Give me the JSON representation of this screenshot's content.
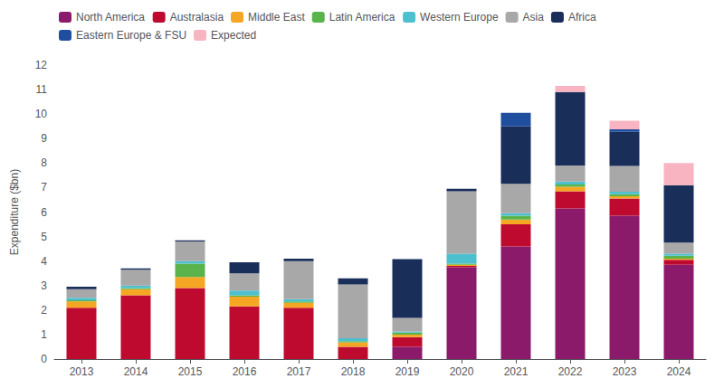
{
  "chart_data": {
    "type": "bar",
    "stacked": true,
    "ylabel": "Expenditure ($bn)",
    "categories": [
      "2013",
      "2014",
      "2015",
      "2016",
      "2017",
      "2018",
      "2019",
      "2020",
      "2021",
      "2022",
      "2023",
      "2024"
    ],
    "series": [
      {
        "name": "North America",
        "color": "#8b1a6b",
        "values": [
          0.0,
          0.0,
          0.0,
          0.0,
          0.0,
          0.0,
          0.5,
          3.75,
          4.6,
          6.15,
          5.85,
          3.85
        ]
      },
      {
        "name": "Australasia",
        "color": "#bf0a30",
        "values": [
          2.1,
          2.6,
          2.9,
          2.15,
          2.1,
          0.5,
          0.4,
          0.05,
          0.9,
          0.7,
          0.7,
          0.2
        ]
      },
      {
        "name": "Middle East",
        "color": "#f5a623",
        "values": [
          0.25,
          0.25,
          0.45,
          0.4,
          0.2,
          0.18,
          0.1,
          0.05,
          0.2,
          0.18,
          0.1,
          0.05
        ]
      },
      {
        "name": "Latin America",
        "color": "#5ab44b",
        "values": [
          0.05,
          0.05,
          0.55,
          0.05,
          0.05,
          0.05,
          0.08,
          0.05,
          0.15,
          0.1,
          0.08,
          0.12
        ]
      },
      {
        "name": "Western Europe",
        "color": "#4dc0d0",
        "values": [
          0.1,
          0.1,
          0.1,
          0.2,
          0.1,
          0.12,
          0.05,
          0.4,
          0.1,
          0.12,
          0.1,
          0.08
        ]
      },
      {
        "name": "Asia",
        "color": "#a8a8a8",
        "values": [
          0.35,
          0.65,
          0.8,
          0.7,
          1.55,
          2.2,
          0.55,
          2.55,
          1.2,
          0.65,
          1.05,
          0.45
        ]
      },
      {
        "name": "Africa",
        "color": "#1a2e5a",
        "values": [
          0.1,
          0.05,
          0.05,
          0.45,
          0.1,
          0.25,
          2.4,
          0.1,
          2.35,
          3.0,
          1.4,
          2.35
        ]
      },
      {
        "name": "Eastern Europe & FSU",
        "color": "#1f4e9e",
        "values": [
          0.0,
          0.0,
          0.0,
          0.0,
          0.0,
          0.0,
          0.0,
          0.0,
          0.55,
          0.0,
          0.1,
          0.0
        ]
      },
      {
        "name": "Expected",
        "color": "#f8b4c0",
        "values": [
          0.0,
          0.0,
          0.0,
          0.0,
          0.0,
          0.0,
          0.0,
          0.0,
          0.0,
          0.25,
          0.35,
          0.9
        ]
      }
    ],
    "ylim": [
      0,
      12
    ],
    "yticks": [
      0,
      1,
      2,
      3,
      4,
      5,
      6,
      7,
      8,
      9,
      10,
      11,
      12
    ],
    "grid": false,
    "legend": "upper left"
  }
}
